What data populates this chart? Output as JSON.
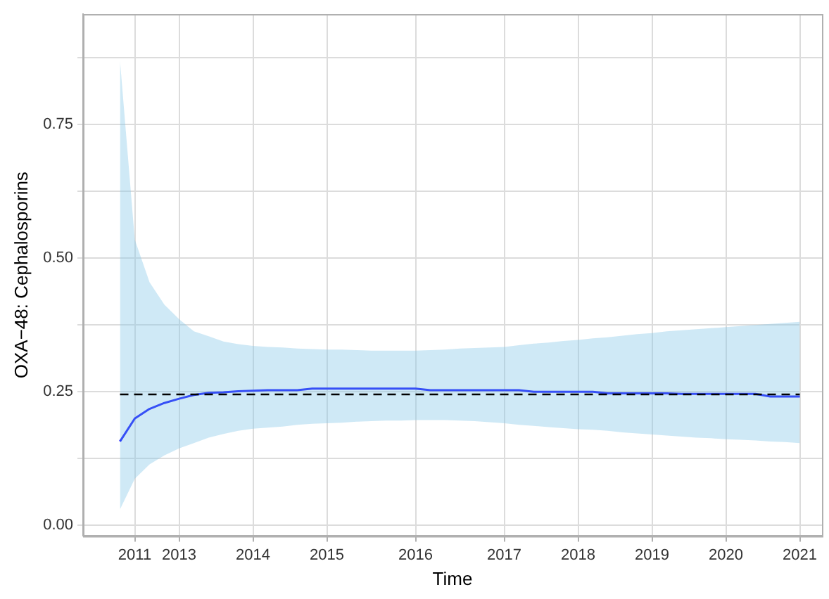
{
  "chart_data": {
    "type": "line",
    "xlabel": "Time",
    "ylabel": "OXA−48: Cephalosporins",
    "categories": [
      null,
      null,
      null,
      "2011",
      null,
      null,
      "2013",
      null,
      null,
      null,
      null,
      "2014",
      null,
      null,
      null,
      null,
      "2015",
      null,
      null,
      null,
      null,
      null,
      "2016",
      null,
      null,
      null,
      null,
      null,
      "2017",
      null,
      null,
      null,
      null,
      "2018",
      null,
      null,
      null,
      null,
      "2019",
      null,
      null,
      null,
      null,
      "2020",
      null,
      null,
      null,
      null,
      "2021",
      null
    ],
    "ylim": [
      -0.02,
      0.957
    ],
    "yticks": [
      {
        "value": 0,
        "label": "0.00"
      },
      {
        "value": 0.125,
        "label": null
      },
      {
        "value": 0.25,
        "label": "0.25"
      },
      {
        "value": 0.375,
        "label": null
      },
      {
        "value": 0.5,
        "label": "0.50"
      },
      {
        "value": 0.625,
        "label": null
      },
      {
        "value": 0.75,
        "label": "0.75"
      },
      {
        "value": 0.875,
        "label": null
      }
    ],
    "grid": true,
    "legend": false,
    "marker": "none",
    "line_style": "solid",
    "series": [
      {
        "color": "#0000ff",
        "values": [
          null,
          null,
          0.157,
          0.2,
          0.218,
          0.229,
          0.237,
          0.244,
          0.248,
          0.249,
          0.251,
          0.252,
          0.253,
          0.253,
          0.253,
          0.256,
          0.256,
          0.256,
          0.256,
          0.256,
          0.256,
          0.256,
          0.256,
          0.253,
          0.253,
          0.253,
          0.253,
          0.253,
          0.253,
          0.253,
          0.25,
          0.25,
          0.25,
          0.25,
          0.25,
          0.247,
          0.247,
          0.247,
          0.247,
          0.247,
          0.246,
          0.246,
          0.246,
          0.246,
          0.246,
          0.246,
          0.241,
          0.241,
          0.241,
          null
        ],
        "lower": [
          null,
          null,
          0.03,
          0.087,
          0.114,
          0.131,
          0.144,
          0.154,
          0.164,
          0.171,
          0.177,
          0.181,
          0.183,
          0.185,
          0.188,
          0.19,
          0.191,
          0.192,
          0.194,
          0.195,
          0.196,
          0.196,
          0.197,
          0.197,
          0.197,
          0.196,
          0.195,
          0.193,
          0.191,
          0.188,
          0.186,
          0.184,
          0.182,
          0.18,
          0.179,
          0.177,
          0.174,
          0.172,
          0.17,
          0.168,
          0.166,
          0.164,
          0.163,
          0.161,
          0.16,
          0.159,
          0.157,
          0.156,
          0.154,
          null
        ],
        "upper": [
          null,
          null,
          0.87,
          0.535,
          0.455,
          0.413,
          0.386,
          0.363,
          0.354,
          0.344,
          0.339,
          0.336,
          0.334,
          0.333,
          0.331,
          0.33,
          0.329,
          0.329,
          0.328,
          0.327,
          0.327,
          0.327,
          0.327,
          0.328,
          0.329,
          0.331,
          0.332,
          0.333,
          0.334,
          0.337,
          0.34,
          0.342,
          0.345,
          0.347,
          0.35,
          0.352,
          0.355,
          0.358,
          0.36,
          0.363,
          0.365,
          0.367,
          0.369,
          0.371,
          0.373,
          0.375,
          0.377,
          0.379,
          0.381,
          null
        ]
      }
    ],
    "ref_lines": [
      {
        "axis": "y",
        "value": 0.245,
        "color": "#000000",
        "line_style": "dashed"
      }
    ]
  }
}
